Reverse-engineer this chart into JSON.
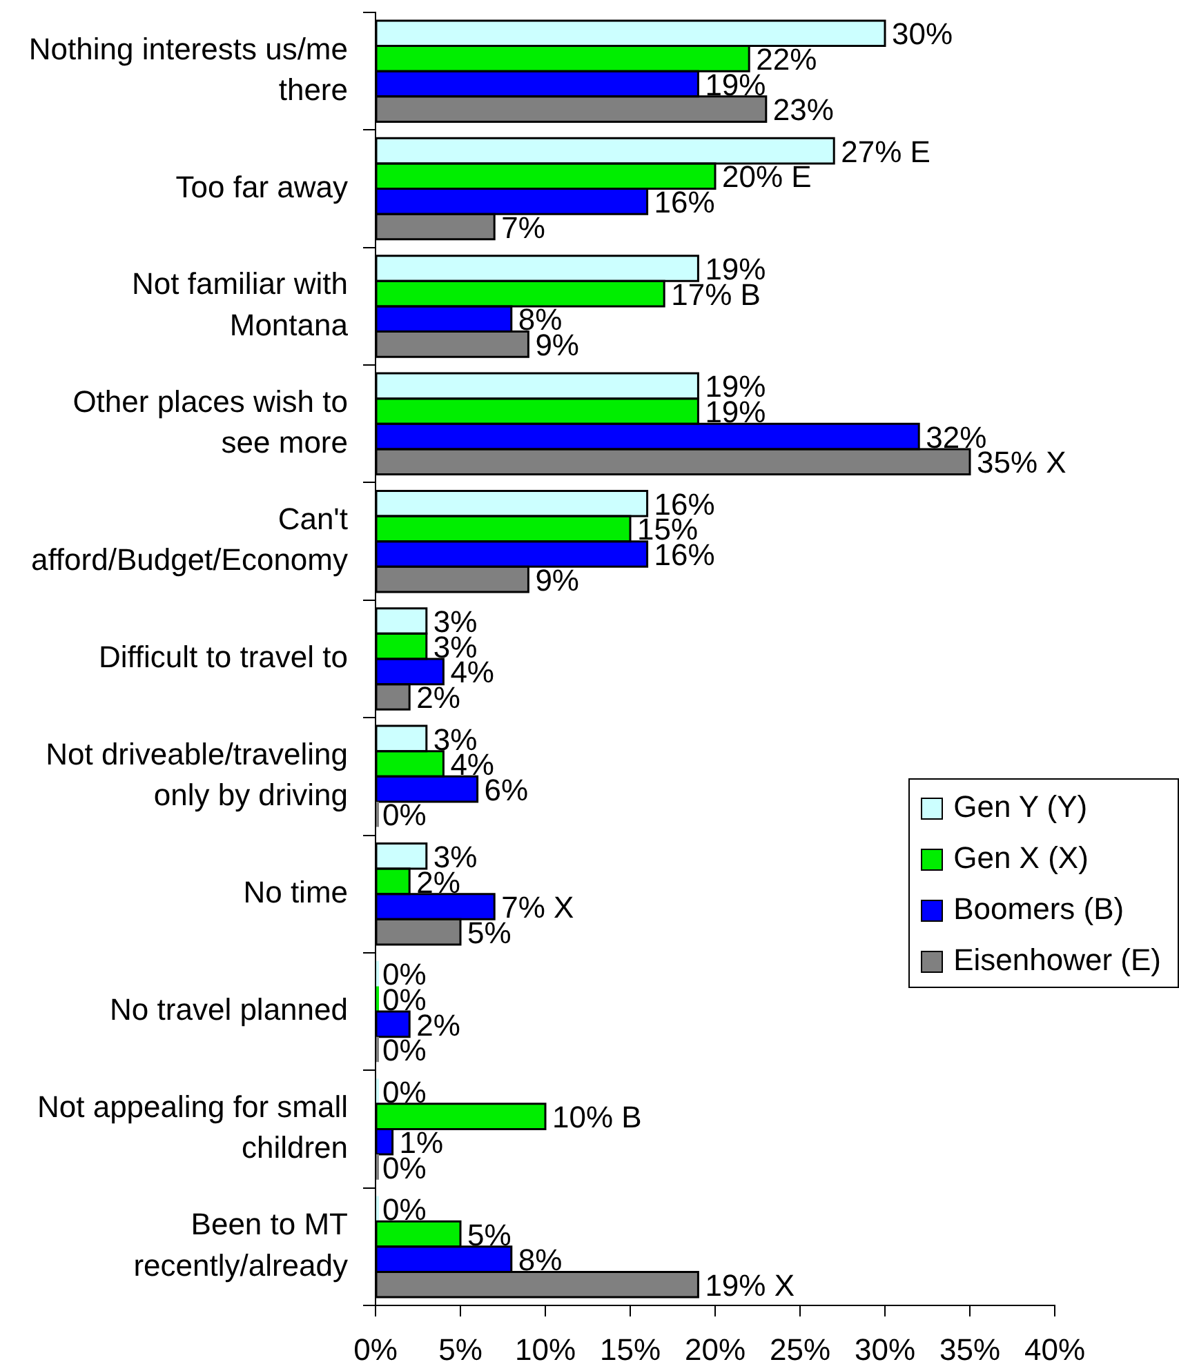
{
  "chart_data": {
    "type": "bar",
    "orientation": "horizontal",
    "categories": [
      "Nothing interests us/me there",
      "Too far away",
      "Not familiar with Montana",
      "Other places wish to see more",
      "Can't afford/Budget/Economy",
      "Difficult to travel to",
      "Not driveable/traveling only by driving",
      "No time",
      "No travel planned",
      "Not appealing for small children",
      "Been to MT recently/already"
    ],
    "series": [
      {
        "name": "Gen Y (Y)",
        "color": "#ccffff",
        "values": [
          30,
          27,
          19,
          19,
          16,
          3,
          3,
          3,
          0,
          0,
          0
        ],
        "value_labels": [
          "30%",
          "27% E",
          "19%",
          "19%",
          "16%",
          "3%",
          "3%",
          "3%",
          "0%",
          "0%",
          "0%"
        ]
      },
      {
        "name": "Gen X (X)",
        "color": "#00ee00",
        "values": [
          22,
          20,
          17,
          19,
          15,
          3,
          4,
          2,
          0,
          10,
          5
        ],
        "value_labels": [
          "22%",
          "20% E",
          "17% B",
          "19%",
          "15%",
          "3%",
          "4%",
          "2%",
          "0%",
          "10% B",
          "5%"
        ]
      },
      {
        "name": "Boomers (B)",
        "color": "#0000ff",
        "values": [
          19,
          16,
          8,
          32,
          16,
          4,
          6,
          7,
          2,
          1,
          8
        ],
        "value_labels": [
          "19%",
          "16%",
          "8%",
          "32%",
          "16%",
          "4%",
          "6%",
          "7% X",
          "2%",
          "1%",
          "8%"
        ]
      },
      {
        "name": "Eisenhower (E)",
        "color": "#808080",
        "values": [
          23,
          7,
          9,
          35,
          9,
          2,
          0,
          5,
          0,
          0,
          19
        ],
        "value_labels": [
          "23%",
          "7%",
          "9%",
          "35% X",
          "9%",
          "2%",
          "0%",
          "5%",
          "0%",
          "0%",
          "19% X"
        ]
      }
    ],
    "xlim": [
      0,
      40
    ],
    "xticks": [
      {
        "value": 0,
        "label": "0%"
      },
      {
        "value": 5,
        "label": "5%"
      },
      {
        "value": 10,
        "label": "10%"
      },
      {
        "value": 15,
        "label": "15%"
      },
      {
        "value": 20,
        "label": "20%"
      },
      {
        "value": 25,
        "label": "25%"
      },
      {
        "value": 30,
        "label": "30%"
      },
      {
        "value": 35,
        "label": "35%"
      },
      {
        "value": 40,
        "label": "40%"
      }
    ],
    "legend": "right"
  }
}
